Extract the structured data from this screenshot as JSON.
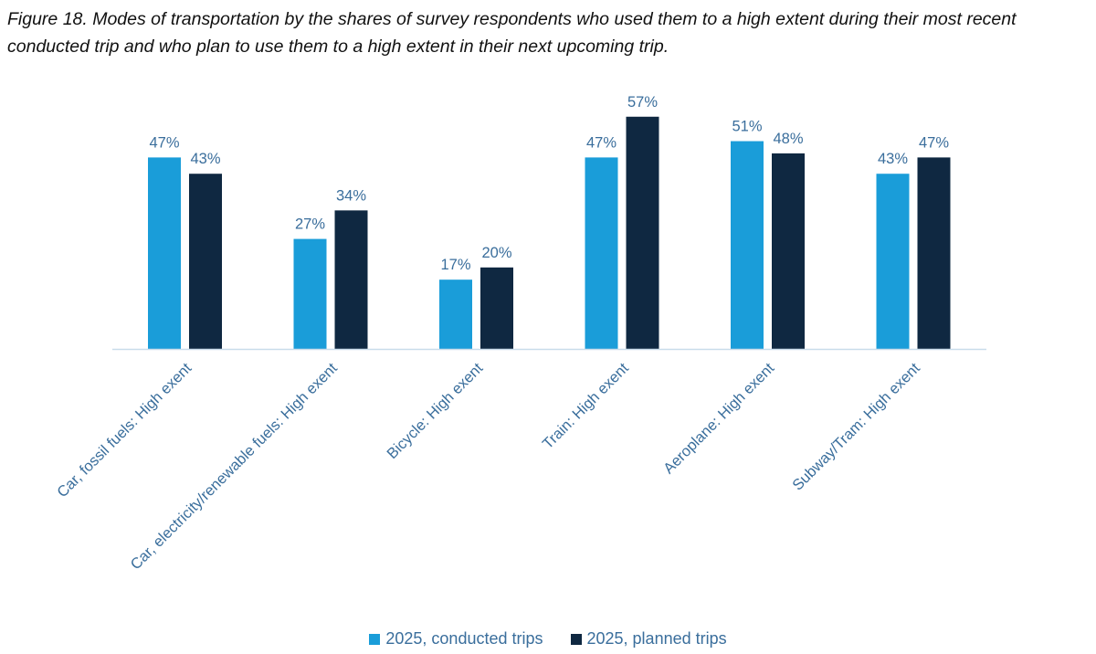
{
  "chart_data": {
    "type": "bar",
    "title": "Figure 18. Modes of transportation by the shares of survey respondents who used them to a high extent during their most recent conducted trip and who plan to use them to a high extent in their next upcoming trip.",
    "categories": [
      "Car, fossil fuels: High exent",
      "Car, electricity/renewable fuels: High exent",
      "Bicycle: High exent",
      "Train: High exent",
      "Aeroplane: High exent",
      "Subway/Tram: High exent"
    ],
    "series": [
      {
        "name": "2025, conducted trips",
        "color": "#1a9dd9",
        "values": [
          47,
          27,
          17,
          47,
          51,
          43
        ],
        "labels": [
          "47%",
          "27%",
          "17%",
          "47%",
          "51%",
          "43%"
        ]
      },
      {
        "name": "2025, planned trips",
        "color": "#0f2841",
        "values": [
          43,
          34,
          20,
          57,
          48,
          47
        ],
        "labels": [
          "43%",
          "34%",
          "20%",
          "57%",
          "48%",
          "47%"
        ]
      }
    ],
    "ylim": [
      0,
      60
    ],
    "grid": false,
    "legend": "bottom",
    "label_color": "#3a6e9c"
  }
}
